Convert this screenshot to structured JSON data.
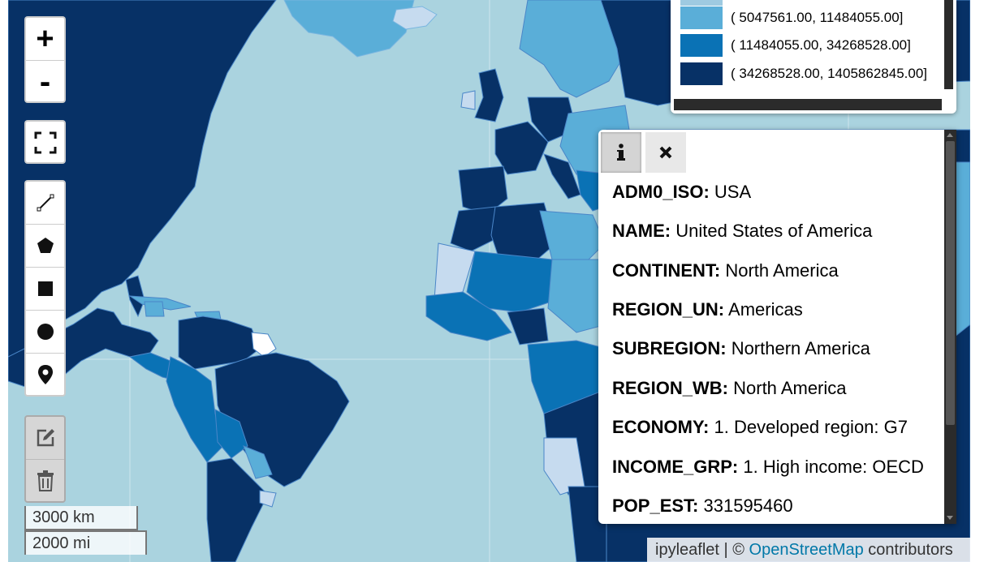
{
  "controls": {
    "zoom_in": "+",
    "zoom_out": "-",
    "fullscreen_icon": "fullscreen-icon",
    "draw_tools": [
      "polyline-icon",
      "polygon-icon",
      "rectangle-icon",
      "circle-icon",
      "marker-icon"
    ],
    "edit_tools": [
      "edit-icon",
      "trash-icon"
    ]
  },
  "scale": {
    "km": "3000 km",
    "mi": "2000 mi"
  },
  "attribution": {
    "prefix": "ipyleaflet | © ",
    "link": "OpenStreetMap",
    "suffix": " contributors"
  },
  "legend": {
    "items": [
      {
        "color": "#5aaed8",
        "label": "( 5047561.00, 11484055.00]"
      },
      {
        "color": "#0a72b5",
        "label": "( 11484055.00, 34268528.00]"
      },
      {
        "color": "#073166",
        "label": "( 34268528.00, 1405862845.00]"
      }
    ]
  },
  "popup": {
    "tabs": [
      "info-icon",
      "close-icon"
    ],
    "fields": [
      {
        "key": "ADM0_ISO:",
        "value": "USA"
      },
      {
        "key": "NAME:",
        "value": "United States of America"
      },
      {
        "key": "CONTINENT:",
        "value": "North America"
      },
      {
        "key": "REGION_UN:",
        "value": "Americas"
      },
      {
        "key": "SUBREGION:",
        "value": "Northern America"
      },
      {
        "key": "REGION_WB:",
        "value": "North America"
      },
      {
        "key": "ECONOMY:",
        "value": "1. Developed region: G7"
      },
      {
        "key": "INCOME_GRP:",
        "value": "1. High income: OECD"
      },
      {
        "key": "POP_EST:",
        "value": "331595460"
      }
    ]
  },
  "colors": {
    "ocean": "#aad3df",
    "dark": "#073166",
    "mid": "#0a72b5",
    "light": "#5aaed8",
    "pale": "#c6dbef"
  }
}
